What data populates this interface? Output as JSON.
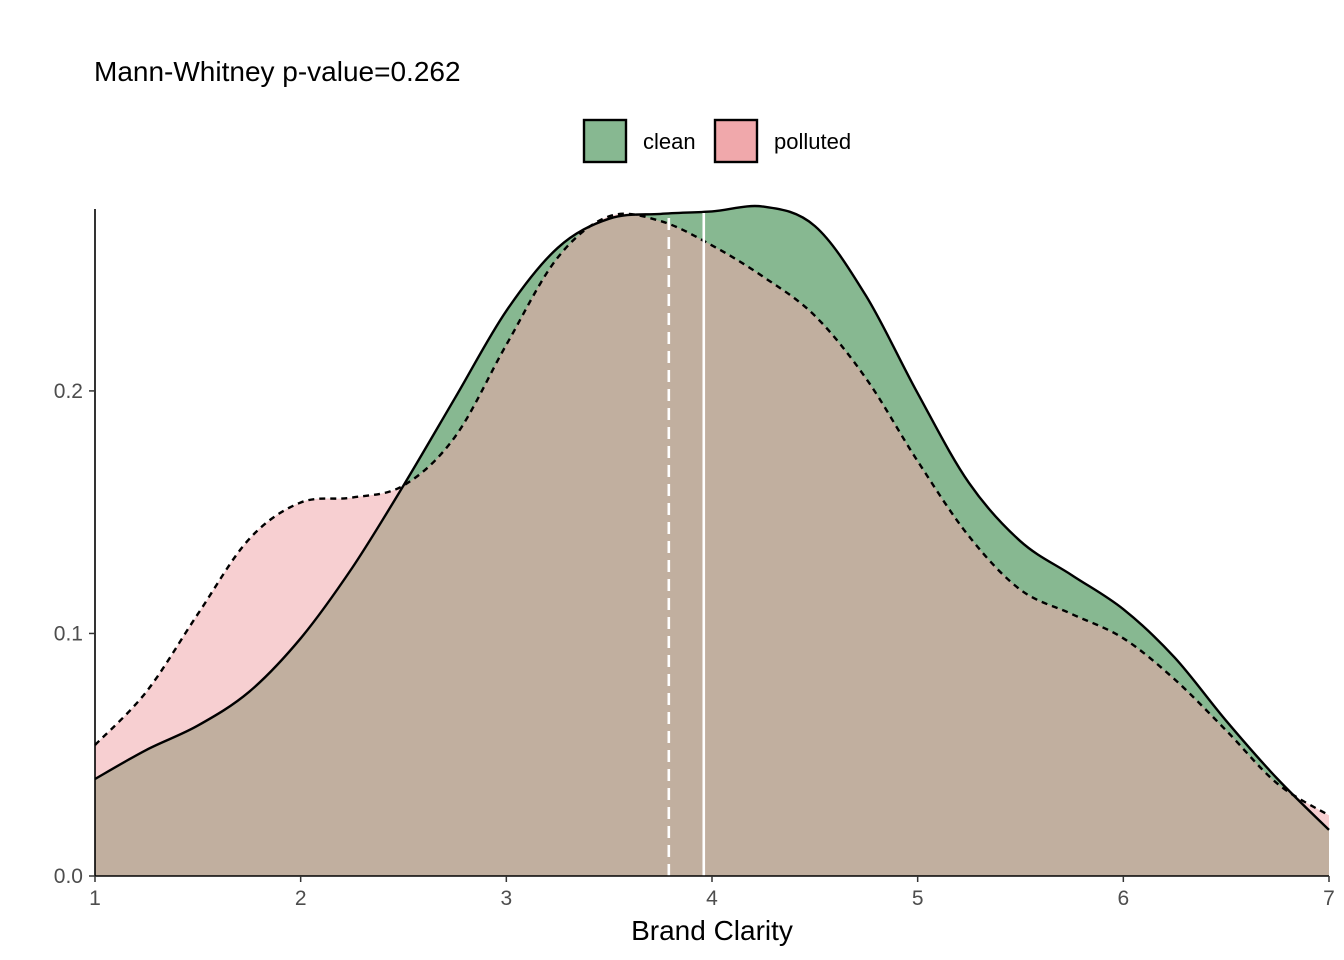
{
  "chart_data": {
    "type": "area",
    "subtype": "density",
    "title": "Mann-Whitney p-value=0.262",
    "xlabel": "Brand Clarity",
    "ylabel": "",
    "xlim": [
      1,
      7
    ],
    "ylim": [
      0,
      0.275
    ],
    "x_ticks": [
      1,
      2,
      3,
      4,
      5,
      6,
      7
    ],
    "y_ticks": [
      0.0,
      0.1,
      0.2
    ],
    "y_tick_labels": [
      "0.0",
      "0.1",
      "0.2"
    ],
    "grid": false,
    "legend_position": "top",
    "series": [
      {
        "name": "clean",
        "fill": "#87b891",
        "line_style": "solid",
        "mean": 3.96,
        "x": [
          1.0,
          1.25,
          1.5,
          1.75,
          2.0,
          2.25,
          2.5,
          2.75,
          3.0,
          3.25,
          3.5,
          3.75,
          4.0,
          4.25,
          4.5,
          4.75,
          5.0,
          5.25,
          5.5,
          5.75,
          6.0,
          6.25,
          6.5,
          6.75,
          7.0
        ],
        "y": [
          0.04,
          0.052,
          0.062,
          0.076,
          0.098,
          0.127,
          0.161,
          0.197,
          0.233,
          0.259,
          0.271,
          0.273,
          0.274,
          0.276,
          0.268,
          0.239,
          0.199,
          0.162,
          0.138,
          0.124,
          0.11,
          0.09,
          0.064,
          0.04,
          0.019
        ]
      },
      {
        "name": "polluted",
        "fill": "#f0a8ab",
        "line_style": "dashed",
        "mean": 3.79,
        "x": [
          1.0,
          1.25,
          1.5,
          1.75,
          2.0,
          2.25,
          2.5,
          2.75,
          3.0,
          3.25,
          3.5,
          3.75,
          4.0,
          4.25,
          4.5,
          4.75,
          5.0,
          5.25,
          5.5,
          5.75,
          6.0,
          6.25,
          6.5,
          6.75,
          7.0
        ],
        "y": [
          0.054,
          0.076,
          0.108,
          0.139,
          0.154,
          0.156,
          0.161,
          0.181,
          0.219,
          0.255,
          0.272,
          0.27,
          0.26,
          0.247,
          0.231,
          0.205,
          0.171,
          0.14,
          0.118,
          0.108,
          0.098,
          0.081,
          0.06,
          0.038,
          0.025
        ]
      }
    ]
  }
}
